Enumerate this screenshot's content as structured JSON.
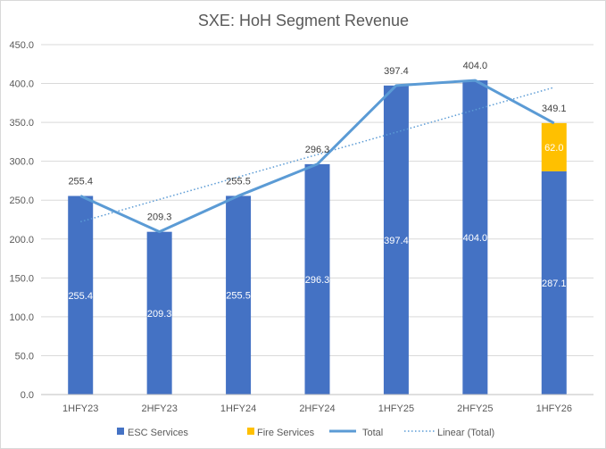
{
  "colors": {
    "esc": "#4472C4",
    "fire": "#FFC000",
    "total": "#5B9BD5",
    "trend": "#5B9BD5",
    "grid": "#D9D9D9",
    "axis": "#BFBFBF"
  },
  "chart_data": {
    "type": "bar",
    "stacked": true,
    "title": "SXE: HoH Segment Revenue",
    "xlabel": "",
    "ylabel": "",
    "categories": [
      "1HFY23",
      "2HFY23",
      "1HFY24",
      "2HFY24",
      "1HFY25",
      "2HFY25",
      "1HFY26"
    ],
    "ylim": [
      0,
      450
    ],
    "yticks": [
      "0.0",
      "50.0",
      "100.0",
      "150.0",
      "200.0",
      "250.0",
      "300.0",
      "350.0",
      "400.0",
      "450.0"
    ],
    "grid": true,
    "legend_position": "bottom",
    "series": [
      {
        "name": "ESC Services",
        "kind": "bar",
        "values": [
          255.4,
          209.3,
          255.5,
          296.3,
          397.4,
          404.0,
          287.1
        ],
        "labels": [
          "255.4",
          "209.3",
          "255.5",
          "296.3",
          "397.4",
          "404.0",
          "287.1"
        ]
      },
      {
        "name": "Fire Services",
        "kind": "bar",
        "values": [
          0,
          0,
          0,
          0,
          0,
          0,
          62.0
        ],
        "labels": [
          "",
          "",
          "",
          "",
          "",
          "",
          "62.0"
        ]
      },
      {
        "name": "Total",
        "kind": "line",
        "values": [
          255.4,
          209.3,
          255.5,
          296.3,
          397.4,
          404.0,
          349.1
        ],
        "labels": [
          "255.4",
          "209.3",
          "255.5",
          "296.3",
          "397.4",
          "404.0",
          "349.1"
        ]
      },
      {
        "name": "Linear (Total)",
        "kind": "trendline",
        "values": [
          222.2,
          251.0,
          279.8,
          308.6,
          337.4,
          366.2,
          395.0
        ]
      }
    ]
  }
}
